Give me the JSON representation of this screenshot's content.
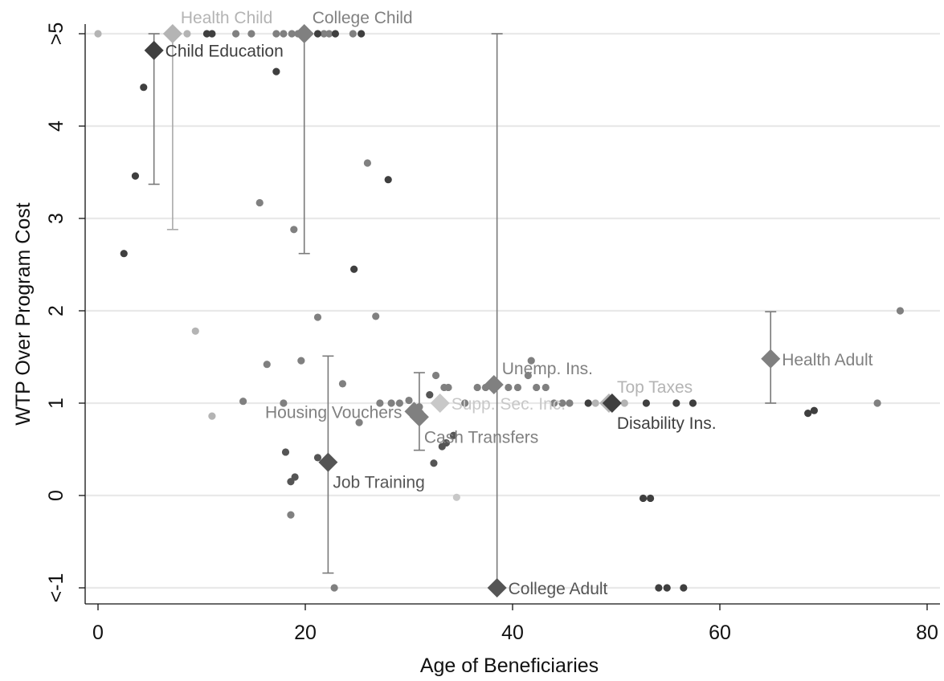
{
  "chart_data": {
    "type": "scatter",
    "xlabel": "Age of Beneficiaries",
    "ylabel": "WTP Over Program Cost",
    "xlim": [
      -1.5,
      81.5
    ],
    "ylim": [
      -1.1,
      5.1
    ],
    "xticks": [
      {
        "value": 0,
        "label": "0"
      },
      {
        "value": 20,
        "label": "20"
      },
      {
        "value": 40,
        "label": "40"
      },
      {
        "value": 60,
        "label": "60"
      },
      {
        "value": 80,
        "label": "80"
      }
    ],
    "yticks": [
      {
        "value": -1,
        "label": "<-1"
      },
      {
        "value": 0,
        "label": "0"
      },
      {
        "value": 1,
        "label": "1"
      },
      {
        "value": 2,
        "label": "2"
      },
      {
        "value": 3,
        "label": "3"
      },
      {
        "value": 4,
        "label": "4"
      },
      {
        "value": 5,
        "label": ">5"
      }
    ],
    "grid": "horizontal",
    "colors": {
      "dark": "#3f3f3f",
      "mid_dark": "#555555",
      "mid": "#808080",
      "light": "#b4b4b4",
      "lighter": "#c8c8c8",
      "errorbar": "#7a7a7a"
    },
    "groups": [
      {
        "name": "Health Child",
        "shade": "light",
        "x": 7.2,
        "y": 5.0,
        "ci": [
          2.88,
          5.0
        ],
        "label_pos": "above-right",
        "points": [
          [
            0,
            5
          ],
          [
            8.6,
            5
          ],
          [
            11,
            0.86
          ],
          [
            9.4,
            1.78
          ]
        ]
      },
      {
        "name": "College Child",
        "shade": "mid",
        "x": 19.9,
        "y": 5.0,
        "ci": [
          2.62,
          5.0
        ],
        "label_pos": "above-right",
        "points": [
          [
            13.3,
            5
          ],
          [
            14.8,
            5
          ],
          [
            17.2,
            5
          ],
          [
            17.9,
            5
          ],
          [
            18.7,
            5
          ],
          [
            19.3,
            5
          ],
          [
            21.8,
            5
          ],
          [
            22.3,
            5
          ],
          [
            24.6,
            5
          ],
          [
            15.6,
            3.17
          ],
          [
            18.9,
            2.88
          ],
          [
            21.2,
            1.93
          ],
          [
            19.6,
            1.46
          ],
          [
            26,
            3.6
          ],
          [
            26.8,
            1.94
          ],
          [
            16.3,
            1.42
          ],
          [
            14,
            1.02
          ],
          [
            23.6,
            1.21
          ],
          [
            25.2,
            0.79
          ],
          [
            27.2,
            1.0
          ],
          [
            28.3,
            1.0
          ],
          [
            29.1,
            1.0
          ],
          [
            18.6,
            -0.21
          ],
          [
            22.8,
            -1.0
          ],
          [
            17.9,
            1.0
          ]
        ]
      },
      {
        "name": "Child Education",
        "shade": "dark",
        "x": 5.4,
        "y": 4.82,
        "ci": [
          3.37,
          5.0
        ],
        "label_pos": "right",
        "points": [
          [
            10.5,
            5
          ],
          [
            11,
            5
          ],
          [
            21.2,
            5
          ],
          [
            22.9,
            5
          ],
          [
            25.4,
            5
          ],
          [
            4.4,
            4.42
          ],
          [
            17.2,
            4.59
          ],
          [
            3.6,
            3.46
          ],
          [
            2.5,
            2.62
          ],
          [
            28,
            3.42
          ],
          [
            24.7,
            2.45
          ]
        ]
      },
      {
        "name": "Job Training",
        "shade": "mid_dark",
        "x": 22.2,
        "y": 0.36,
        "ci": [
          -0.84,
          1.51
        ],
        "label_pos": "below-right",
        "points": [
          [
            18.1,
            0.47
          ],
          [
            18.6,
            0.15
          ],
          [
            19.0,
            0.2
          ],
          [
            21.2,
            0.41
          ],
          [
            32.4,
            0.35
          ],
          [
            33.2,
            0.53
          ],
          [
            33.6,
            0.57
          ],
          [
            34.3,
            0.65
          ],
          [
            32.0,
            1.09
          ]
        ]
      },
      {
        "name": "Housing Vouchers",
        "shade": "mid",
        "x": 30.5,
        "y": 0.91,
        "ci": null,
        "label_pos": "left",
        "points": [
          [
            30.0,
            1.03
          ],
          [
            31.0,
            0.96
          ]
        ]
      },
      {
        "name": "Cash Transfers",
        "shade": "mid",
        "x": 31.0,
        "y": 0.85,
        "ci": [
          0.49,
          1.33
        ],
        "label_pos": "below-right",
        "points": [
          [
            32.6,
            1.3
          ],
          [
            35.4,
            1.0
          ]
        ]
      },
      {
        "name": "Supp. Sec. Inc.",
        "shade": "lighter",
        "x": 33.0,
        "y": 1.0,
        "ci": null,
        "label_pos": "right",
        "points": [
          [
            34.6,
            -0.02
          ]
        ]
      },
      {
        "name": "Unemp. Ins.",
        "shade": "mid",
        "x": 38.2,
        "y": 1.2,
        "ci": null,
        "label_pos": "above-right",
        "points": [
          [
            33.4,
            1.17
          ],
          [
            33.8,
            1.17
          ],
          [
            36.6,
            1.17
          ],
          [
            37.4,
            1.17
          ],
          [
            39.6,
            1.17
          ],
          [
            40.5,
            1.17
          ],
          [
            42.3,
            1.17
          ],
          [
            43.2,
            1.17
          ],
          [
            41.8,
            1.46
          ],
          [
            41.5,
            1.3
          ],
          [
            44.0,
            1.0
          ],
          [
            44.8,
            1.0
          ],
          [
            45.5,
            1.0
          ]
        ]
      },
      {
        "name": "College Adult",
        "shade": "mid_dark",
        "x": 38.5,
        "y": -1.0,
        "ci": [
          -1.0,
          5.0
        ],
        "label_pos": "right",
        "points": []
      },
      {
        "name": "Top Taxes",
        "shade": "light",
        "x": 49.3,
        "y": 1.0,
        "ci": null,
        "label_pos": "above-right",
        "points": [
          [
            48.0,
            1.0
          ],
          [
            50.8,
            1.0
          ]
        ]
      },
      {
        "name": "Disability Ins.",
        "shade": "dark",
        "x": 49.6,
        "y": 1.0,
        "ci": null,
        "label_pos": "below-right",
        "points": [
          [
            47.3,
            1.0
          ],
          [
            52.9,
            1.0
          ],
          [
            55.8,
            1.0
          ],
          [
            57.4,
            1.0
          ],
          [
            52.6,
            -0.03
          ],
          [
            53.3,
            -0.03
          ],
          [
            54.1,
            -1.0
          ],
          [
            54.9,
            -1.0
          ],
          [
            56.5,
            -1.0
          ],
          [
            68.5,
            0.89
          ],
          [
            69.1,
            0.92
          ]
        ]
      },
      {
        "name": "Health Adult",
        "shade": "mid",
        "x": 64.9,
        "y": 1.48,
        "ci": [
          1.0,
          1.99
        ],
        "label_pos": "right",
        "points": [
          [
            77.4,
            2.0
          ],
          [
            75.2,
            1.0
          ]
        ]
      }
    ]
  }
}
